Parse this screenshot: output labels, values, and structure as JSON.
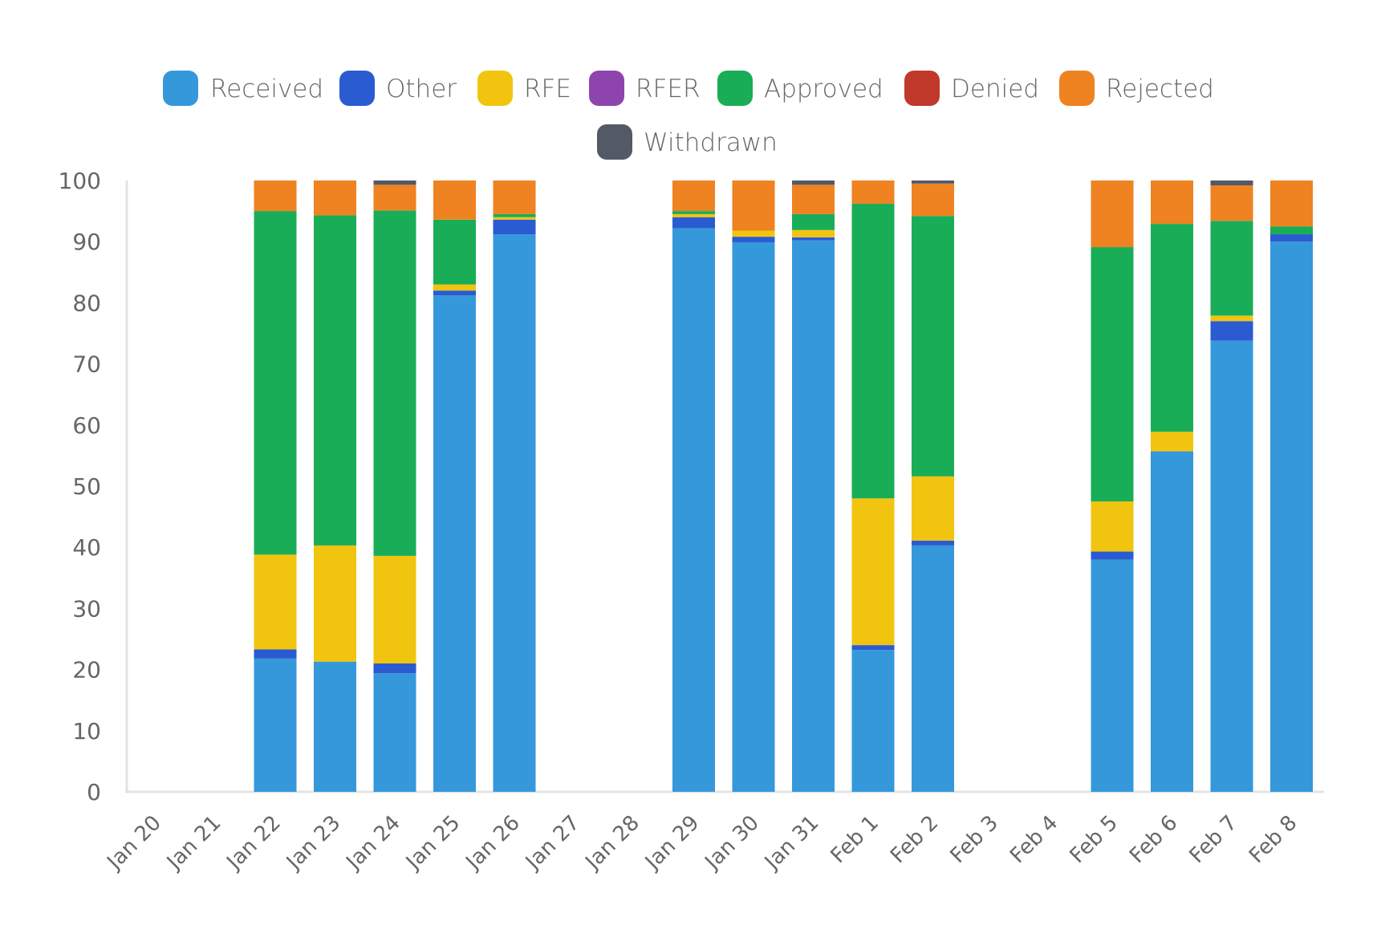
{
  "chart_data": {
    "type": "bar",
    "stacked": true,
    "title": "",
    "xlabel": "",
    "ylabel": "",
    "ylim": [
      0,
      100
    ],
    "yticks": [
      "0",
      "10",
      "20",
      "30",
      "40",
      "50",
      "60",
      "70",
      "80",
      "90",
      "100"
    ],
    "grid": false,
    "legend_position": "top-center",
    "categories": [
      "Jan 20",
      "Jan 21",
      "Jan 22",
      "Jan 23",
      "Jan 24",
      "Jan 25",
      "Jan 26",
      "Jan 27",
      "Jan 28",
      "Jan 29",
      "Jan 30",
      "Jan 31",
      "Feb 1",
      "Feb 2",
      "Feb 3",
      "Feb 4",
      "Feb 5",
      "Feb 6",
      "Feb 7",
      "Feb 8"
    ],
    "series": [
      {
        "name": "Received",
        "color": "#3598db",
        "values": [
          0,
          0,
          21.8,
          21.3,
          19.4,
          81.2,
          91.2,
          0,
          0,
          92.2,
          89.9,
          90.2,
          23.2,
          40.3,
          0,
          0,
          38.0,
          55.7,
          73.8,
          90.0
        ]
      },
      {
        "name": "Other",
        "color": "#2a5bd1",
        "values": [
          0,
          0,
          1.5,
          0,
          1.6,
          0.8,
          2.4,
          0,
          0,
          1.8,
          0.9,
          0.5,
          0.8,
          0.8,
          0,
          0,
          1.3,
          0,
          3.2,
          1.2
        ]
      },
      {
        "name": "RFE",
        "color": "#f1c40f",
        "values": [
          0,
          0,
          15.5,
          19.0,
          17.6,
          1.0,
          0.4,
          0,
          0,
          0.5,
          1.0,
          1.2,
          24.0,
          10.5,
          0,
          0,
          8.2,
          3.2,
          0.9,
          0
        ]
      },
      {
        "name": "RFER",
        "color": "#8e44ad",
        "values": [
          0,
          0,
          0,
          0,
          0,
          0,
          0,
          0,
          0,
          0,
          0,
          0,
          0,
          0,
          0,
          0,
          0,
          0,
          0,
          0
        ]
      },
      {
        "name": "Approved",
        "color": "#1aad57",
        "values": [
          0,
          0,
          56.2,
          54.0,
          56.5,
          10.6,
          0.5,
          0,
          0,
          0.5,
          0,
          2.6,
          48.2,
          42.6,
          0,
          0,
          41.6,
          34.0,
          15.5,
          1.3
        ]
      },
      {
        "name": "Denied",
        "color": "#c0392b",
        "values": [
          0,
          0,
          0,
          0,
          0,
          0,
          0,
          0,
          0,
          0,
          0,
          0,
          0,
          0,
          0,
          0,
          0,
          0,
          0,
          0
        ]
      },
      {
        "name": "Rejected",
        "color": "#ef8221",
        "values": [
          0,
          0,
          5.0,
          5.7,
          4.2,
          6.4,
          5.5,
          0,
          0,
          5.0,
          8.2,
          4.8,
          3.8,
          5.3,
          0,
          0,
          10.9,
          7.1,
          5.8,
          7.5
        ]
      },
      {
        "name": "Withdrawn",
        "color": "#535a66",
        "values": [
          0,
          0,
          0,
          0,
          0.7,
          0,
          0,
          0,
          0,
          0,
          0,
          0.7,
          0,
          0.5,
          0,
          0,
          0,
          0,
          0.8,
          0
        ]
      }
    ]
  }
}
